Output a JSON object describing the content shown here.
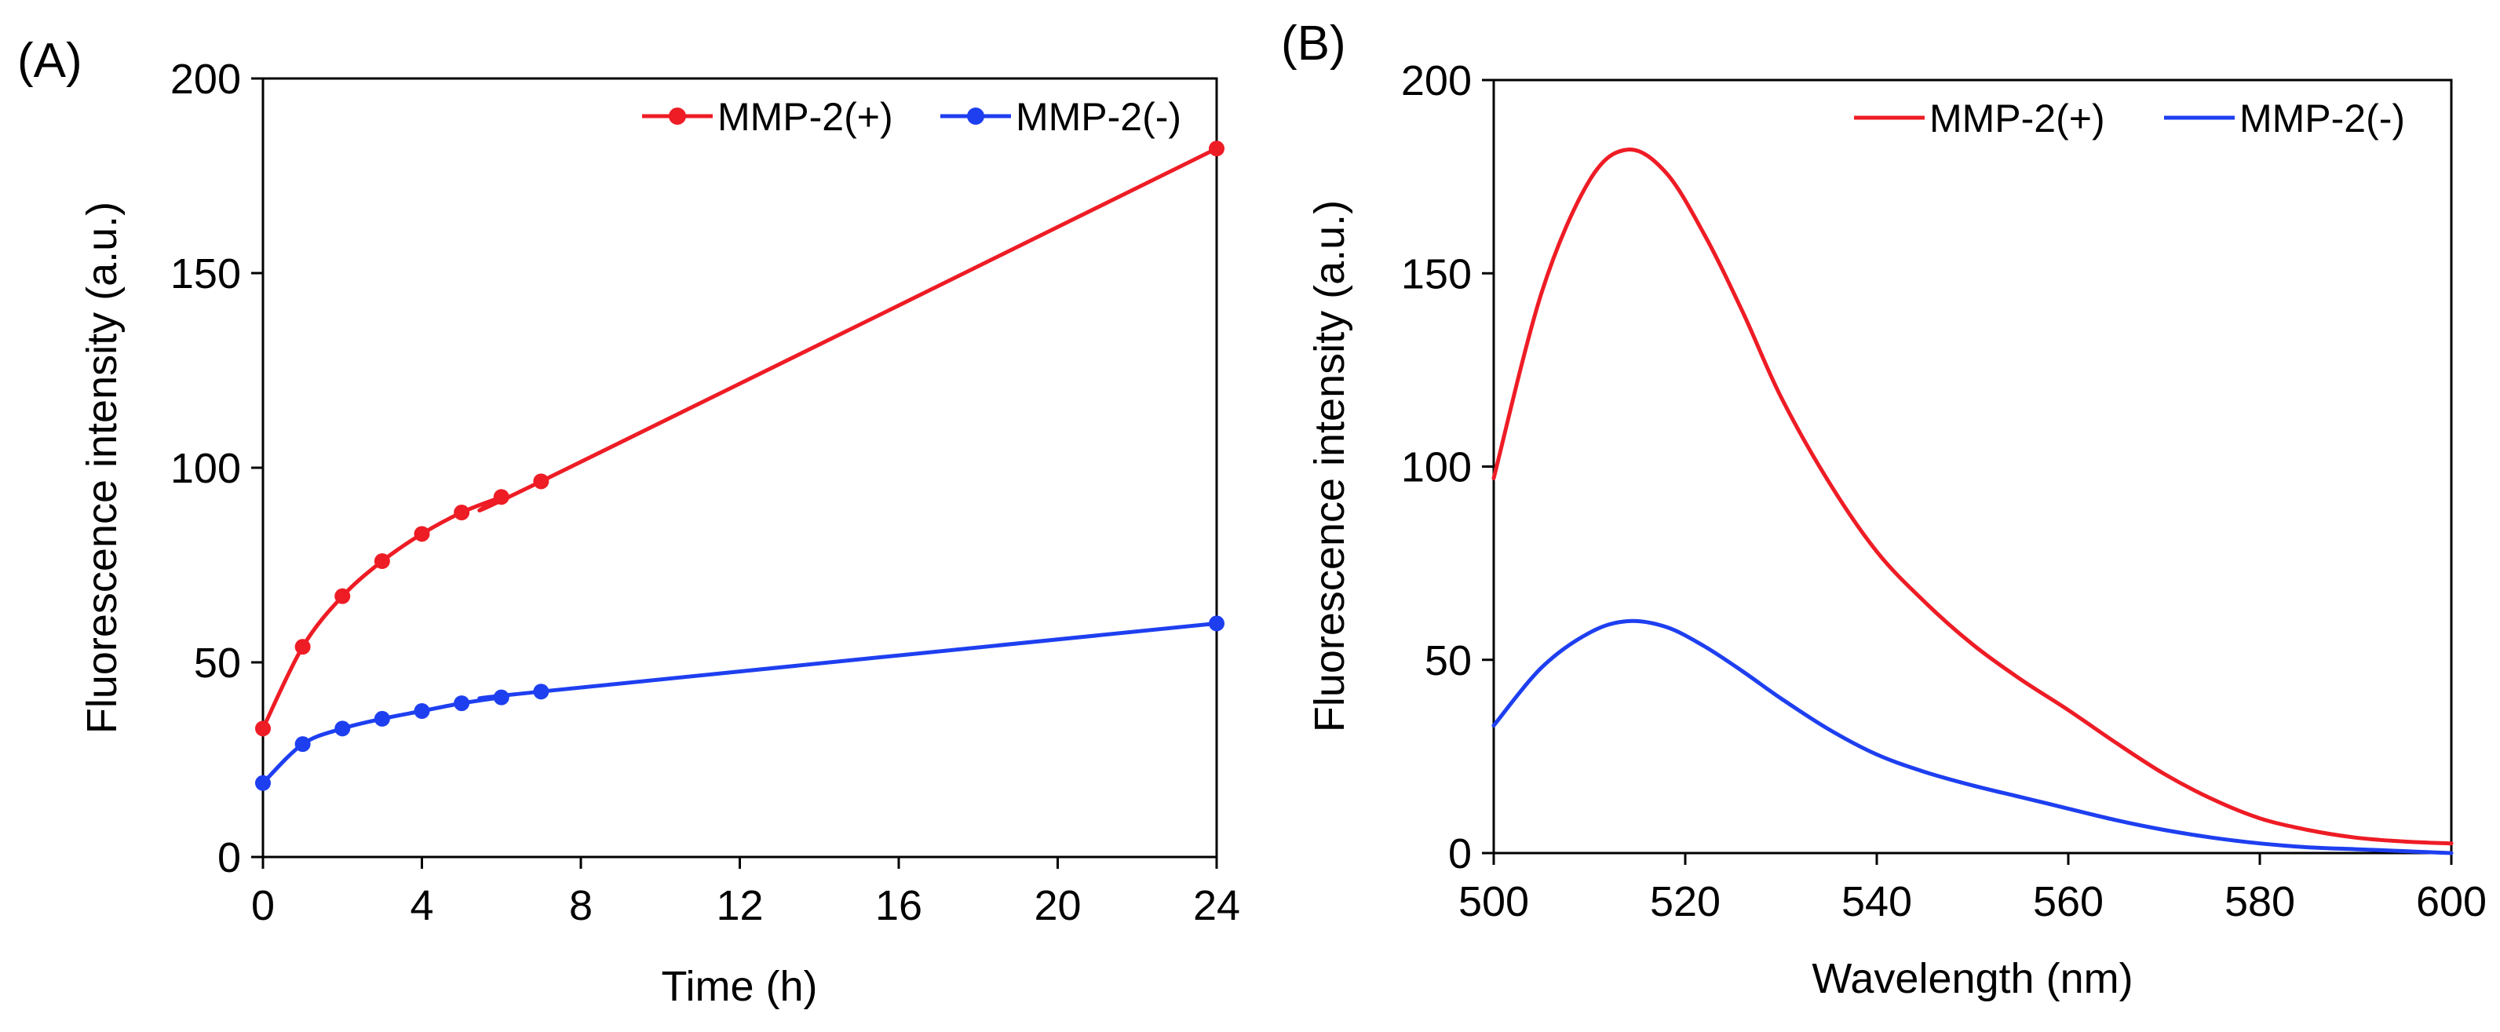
{
  "chart_data": [
    {
      "panel_label": "(A)",
      "type": "line",
      "xlabel": "Time (h)",
      "ylabel": "Fluorescence intensity (a.u.)",
      "xlim": [
        0,
        24
      ],
      "ylim": [
        0,
        200
      ],
      "xticks": [
        0,
        4,
        8,
        12,
        16,
        20,
        24
      ],
      "yticks": [
        0,
        50,
        100,
        150,
        200
      ],
      "grid": false,
      "legend": "top-right",
      "x": [
        0,
        1,
        2,
        3,
        4,
        5,
        6,
        7,
        24
      ],
      "series": [
        {
          "name": "MMP-2(+)",
          "color": "#ee1c25",
          "markers": true,
          "values": [
            33,
            54,
            67,
            76,
            83,
            88.5,
            92.5,
            96.5,
            182
          ]
        },
        {
          "name": "MMP-2(-)",
          "color": "#1e3ff0",
          "markers": true,
          "values": [
            19,
            29,
            33,
            35.5,
            37.5,
            39.5,
            41,
            42.5,
            60
          ]
        }
      ]
    },
    {
      "panel_label": "(B)",
      "type": "line",
      "xlabel": "Wavelength (nm)",
      "ylabel": "Fluorescence intensity (a.u.)",
      "xlim": [
        500,
        600
      ],
      "ylim": [
        0,
        200
      ],
      "xticks": [
        500,
        520,
        540,
        560,
        580,
        600
      ],
      "yticks": [
        0,
        50,
        100,
        150,
        200
      ],
      "grid": false,
      "legend": "top-right",
      "x": [
        500,
        505,
        510,
        514,
        518,
        522,
        526,
        530,
        535,
        540,
        545,
        550,
        555,
        560,
        565,
        570,
        575,
        580,
        585,
        590,
        595,
        600
      ],
      "series": [
        {
          "name": "MMP-2(+)",
          "color": "#ee1c25",
          "markers": false,
          "values": [
            97,
            145,
            174,
            182,
            176,
            160,
            140,
            118,
            96,
            78,
            65,
            54,
            45,
            37,
            28.5,
            20.5,
            14,
            9,
            6,
            4,
            3,
            2.5
          ]
        },
        {
          "name": "MMP-2(-)",
          "color": "#1e3ff0",
          "markers": false,
          "values": [
            33,
            48,
            57,
            60,
            58.5,
            53.5,
            47,
            40,
            32,
            25.5,
            21,
            17.5,
            14.5,
            11.5,
            8.5,
            6,
            4,
            2.5,
            1.5,
            1,
            0.5,
            0
          ]
        }
      ]
    }
  ]
}
